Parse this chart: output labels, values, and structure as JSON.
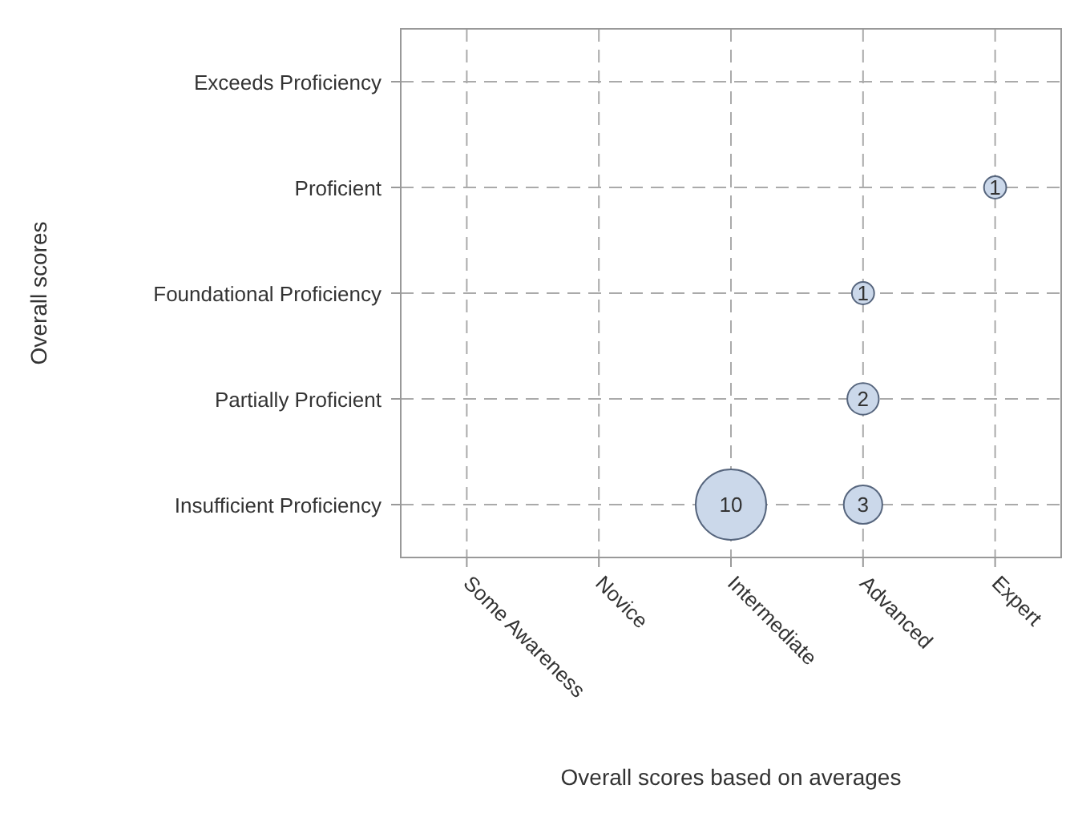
{
  "chart_data": {
    "type": "heatmap",
    "xlabel": "Overall scores based on averages",
    "ylabel": "Overall scores",
    "categories": [
      "Some Awareness",
      "Novice",
      "Intermediate",
      "Advanced",
      "Expert"
    ],
    "y_categories": [
      "Exceeds Proficiency",
      "Proficient",
      "Foundational Proficiency",
      "Partially Proficient",
      "Insufficient Proficiency"
    ],
    "cells": [
      [
        null,
        null,
        null,
        null,
        null
      ],
      [
        null,
        null,
        null,
        null,
        1
      ],
      [
        null,
        null,
        null,
        1,
        null
      ],
      [
        null,
        null,
        null,
        2,
        null
      ],
      [
        null,
        null,
        10,
        3,
        null
      ]
    ],
    "data_labels": true,
    "color": "#cbd8ea",
    "grid": true
  }
}
